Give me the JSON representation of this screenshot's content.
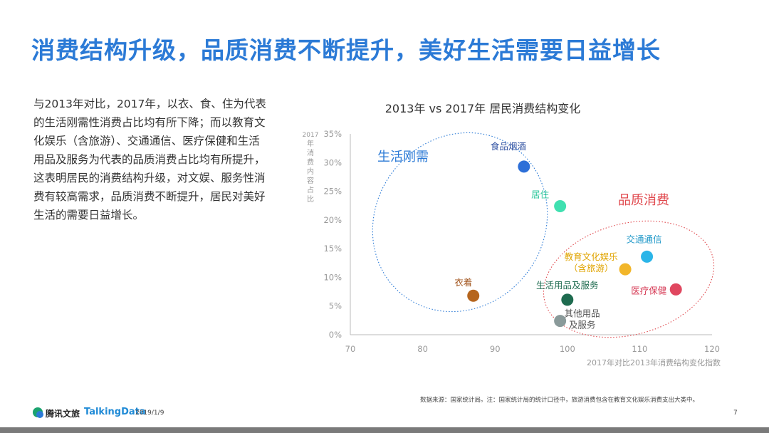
{
  "title": "消费结构升级，品质消费不断提升，美好生活需要日益增长",
  "paragraph": "与2013年对比，2017年，以衣、食、住为代表的生活刚需性消费占比均有所下降；而以教育文化娱乐（含旅游）、交通通信、医疗保健和生活用品及服务为代表的品质消费占比均有所提升，这表明居民的消费结构升级，对文娱、服务性消费有较高需求，品质消费不断提升，居民对美好生活的需要日益增长。",
  "chart_data": {
    "type": "scatter",
    "title": "2013年 vs 2017年 居民消费结构变化",
    "xlabel": "2017年对比2013年消费结构变化指数",
    "ylabel_lines": [
      "2017",
      "年",
      "消",
      "费",
      "内",
      "容",
      "占",
      "比"
    ],
    "xlim": [
      70,
      120
    ],
    "ylim": [
      0,
      35
    ],
    "xticks": [
      "70",
      "80",
      "90",
      "100",
      "110",
      "120"
    ],
    "yticks": [
      "0%",
      "5%",
      "10%",
      "15%",
      "20%",
      "25%",
      "30%",
      "35%"
    ],
    "groups": [
      {
        "name": "生活刚需",
        "color": "#2b7ad6"
      },
      {
        "name": "品质消费",
        "color": "#e0474c"
      }
    ],
    "points": [
      {
        "label": "食品烟酒",
        "x": 94,
        "y": 29.3,
        "color": "#2d6fd8",
        "label_color": "#2d4fa0"
      },
      {
        "label": "居住",
        "x": 99,
        "y": 22.4,
        "color": "#3fe0b0",
        "label_color": "#2ec79c"
      },
      {
        "label": "衣着",
        "x": 87,
        "y": 6.8,
        "color": "#b5651d",
        "label_color": "#a0521a"
      },
      {
        "label": "交通通信",
        "x": 111,
        "y": 13.6,
        "color": "#2bb5e8",
        "label_color": "#2199c9"
      },
      {
        "label": "教育文化娱乐（含旅游）",
        "x": 108,
        "y": 11.4,
        "color": "#f2b62a",
        "label_color": "#e0a400"
      },
      {
        "label": "医疗保健",
        "x": 115,
        "y": 7.9,
        "color": "#e0475f",
        "label_color": "#d63a55"
      },
      {
        "label": "生活用品及服务",
        "x": 100,
        "y": 6.1,
        "color": "#1e6b4f",
        "label_color": "#1e6b4f"
      },
      {
        "label": "其他用品及服务",
        "x": 99,
        "y": 2.4,
        "color": "#8a9a9a",
        "label_color": "#555555"
      }
    ]
  },
  "footer": {
    "logo_tencent": "腾讯文旅",
    "logo_talkingdata": "TalkingData",
    "date": "2019/1/9",
    "source": "数据来源：国家统计局。注：国家统计局的统计口径中，旅游消费包含在教育文化娱乐消费支出大类中。",
    "page": "7"
  }
}
